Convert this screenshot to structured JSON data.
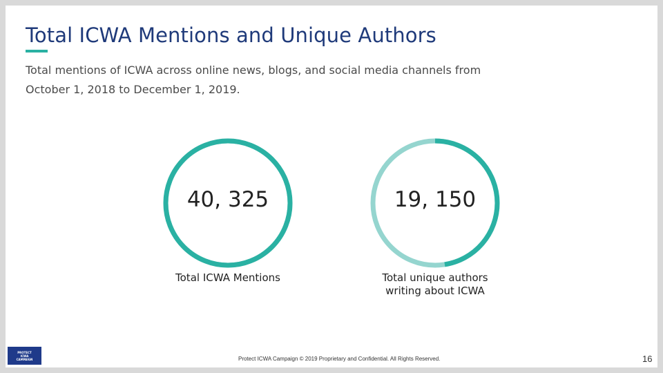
{
  "slide": {
    "title": "Total ICWA Mentions and Unique Authors",
    "subtitle_line1": "Total mentions of ICWA across online news, blogs, and social media channels from",
    "subtitle_line2": "October 1, 2018 to December 1, 2019.",
    "footer": "Protect ICWA Campaign © 2019 Proprietary and Confidential. All Rights Reserved.",
    "page_number": "16",
    "logo": {
      "line1": "PROTECT",
      "line2": "ICWA",
      "line3": "CAMPAIGN"
    }
  },
  "metrics": [
    {
      "value": "40, 325",
      "label": "Total ICWA Mentions",
      "fraction": 1.0
    },
    {
      "value": "19, 150",
      "label_line1": "Total unique authors",
      "label_line2": "writing about ICWA",
      "fraction": 0.475
    }
  ],
  "colors": {
    "accent": "#2ab1a3",
    "accent_light": "#95d5cf",
    "title": "#1f3a7a",
    "logo_bg": "#1f3a8a"
  }
}
